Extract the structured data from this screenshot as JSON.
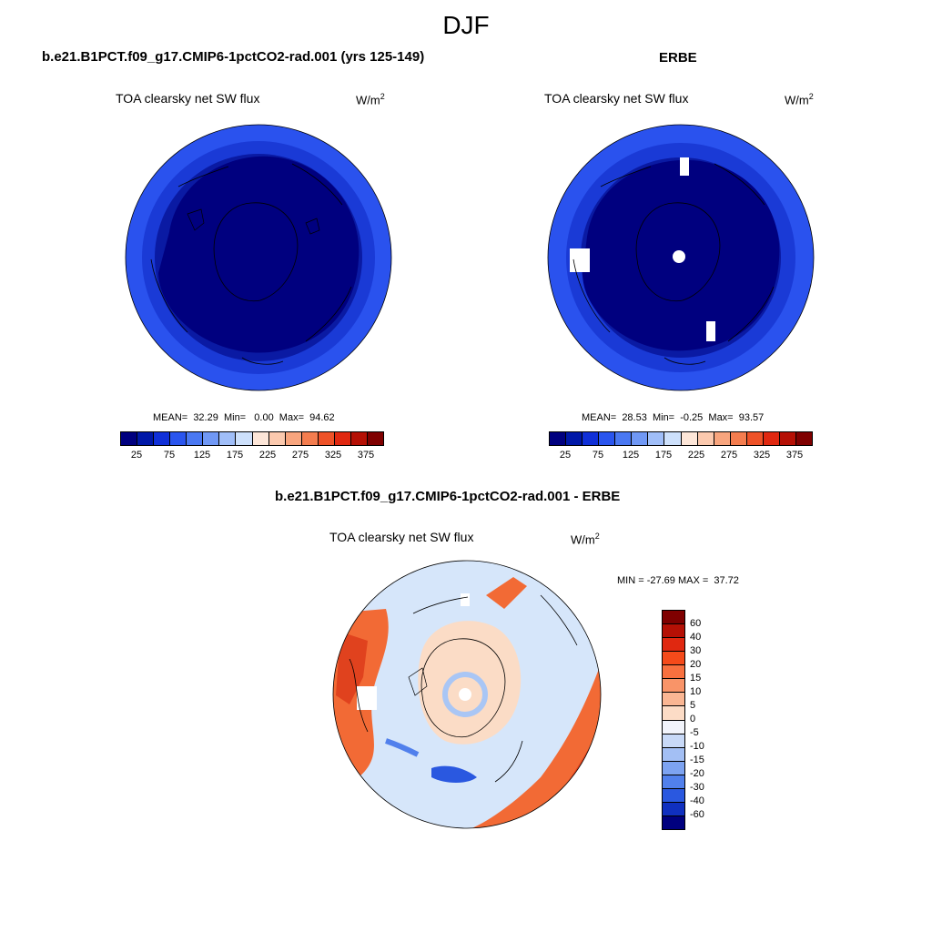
{
  "figure": {
    "season": "DJF"
  },
  "panels": {
    "model": {
      "title": "b.e21.B1PCT.f09_g17.CMIP6-1pctCO2-rad.001 (yrs 125-149)",
      "variable": "TOA clearsky net SW flux",
      "units_base": "W/m",
      "units_exp": "2",
      "stats_text": "MEAN=  32.29  Min=   0.00  Max=  94.62",
      "stats": {
        "mean": 32.29,
        "min": 0.0,
        "max": 94.62
      }
    },
    "obs": {
      "title": "ERBE",
      "variable": "TOA clearsky net SW flux",
      "units_base": "W/m",
      "units_exp": "2",
      "stats_text": "MEAN=  28.53  Min=  -0.25  Max=  93.57",
      "stats": {
        "mean": 28.53,
        "min": -0.25,
        "max": 93.57
      }
    },
    "diff": {
      "title": "b.e21.B1PCT.f09_g17.CMIP6-1pctCO2-rad.001 - ERBE",
      "variable": "TOA clearsky net SW flux",
      "units_base": "W/m",
      "units_exp": "2",
      "stats_text": "MIN = -27.69 MAX =  37.72",
      "stats": {
        "min": -27.69,
        "max": 37.72
      }
    }
  },
  "colorbars": {
    "absolute": {
      "tick_labels": [
        "25",
        "75",
        "125",
        "175",
        "225",
        "275",
        "325",
        "375"
      ],
      "colors": [
        "#00007f",
        "#0018a8",
        "#1030d8",
        "#2a55ee",
        "#4a78f2",
        "#7098f5",
        "#a0bef8",
        "#cde0fb",
        "#fde6d8",
        "#fbc9ae",
        "#f8a57e",
        "#f47d4f",
        "#ee5228",
        "#e02810",
        "#b51005",
        "#7f0000"
      ]
    },
    "difference": {
      "tick_labels": [
        "60",
        "40",
        "30",
        "20",
        "15",
        "10",
        "5",
        "0",
        "-5",
        "-10",
        "-15",
        "-20",
        "-30",
        "-40",
        "-60"
      ],
      "colors": [
        "#7f0000",
        "#b51005",
        "#e02810",
        "#f54a1a",
        "#f8703f",
        "#f99468",
        "#fab693",
        "#fcdcc6",
        "#f2f4fb",
        "#c8d9f7",
        "#a3bff4",
        "#7da3f1",
        "#5180ec",
        "#2a58e0",
        "#1030c0",
        "#00007f"
      ]
    }
  },
  "map_colors": {
    "deep_blue": "#00007f",
    "mid_blue": "#0a1aa3",
    "blue": "#1a3ad6",
    "light_blue": "#2a52ee",
    "diff_bg": "#d6e6fa",
    "diff_pos": "#fbdcc6",
    "diff_red": "#f26a35",
    "diff_dark_red": "#e0421e"
  }
}
